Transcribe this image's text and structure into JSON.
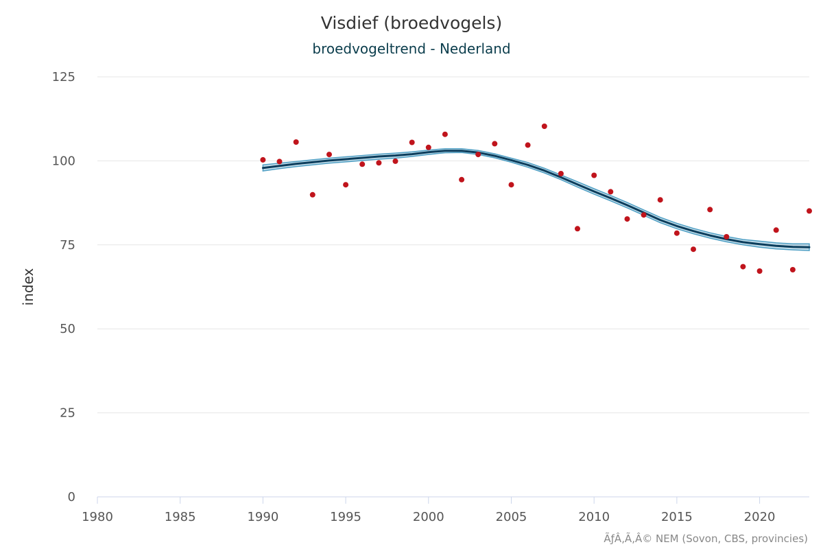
{
  "chart_data": {
    "type": "line",
    "title": "Visdief (broedvogels)",
    "subtitle": "broedvogeltrend - Nederland",
    "xlabel": "",
    "ylabel": "index",
    "xlim": [
      1980,
      2023
    ],
    "ylim": [
      0,
      125
    ],
    "x_ticks": [
      "1980",
      "1985",
      "1990",
      "1995",
      "2000",
      "2005",
      "2010",
      "2015",
      "2020"
    ],
    "y_ticks": [
      "0",
      "25",
      "50",
      "75",
      "100",
      "125"
    ],
    "grid": true,
    "colors": {
      "trend": "#0b3d5c",
      "band": "#4f9fc4",
      "points": "#c0141c",
      "grid": "#e6e6e6",
      "axis": "#ccd6eb"
    },
    "series": [
      {
        "type": "scatter",
        "x": [
          1990,
          1991,
          1992,
          1993,
          1994,
          1995,
          1996,
          1997,
          1998,
          1999,
          2000,
          2001,
          2002,
          2003,
          2004,
          2005,
          2006,
          2007,
          2008,
          2009,
          2010,
          2011,
          2012,
          2013,
          2014,
          2015,
          2016,
          2017,
          2018,
          2019,
          2020,
          2021,
          2022,
          2023
        ],
        "values": [
          100.3,
          99.8,
          105.6,
          89.9,
          101.9,
          92.9,
          99.0,
          99.4,
          99.9,
          105.5,
          104.0,
          107.9,
          94.4,
          101.9,
          105.1,
          92.9,
          104.7,
          110.3,
          96.2,
          79.8,
          95.7,
          90.8,
          82.7,
          83.9,
          88.4,
          78.5,
          73.7,
          85.5,
          77.4,
          68.5,
          67.2,
          79.4,
          67.6,
          85.1
        ]
      },
      {
        "type": "line",
        "x": [
          1990,
          1991,
          1992,
          1993,
          1994,
          1995,
          1996,
          1997,
          1998,
          1999,
          2000,
          2001,
          2002,
          2003,
          2004,
          2005,
          2006,
          2007,
          2008,
          2009,
          2010,
          2011,
          2012,
          2013,
          2014,
          2015,
          2016,
          2017,
          2018,
          2019,
          2020,
          2021,
          2022,
          2023
        ],
        "values": [
          97.9,
          98.5,
          99.1,
          99.6,
          100.1,
          100.5,
          100.9,
          101.3,
          101.6,
          102.0,
          102.6,
          103.0,
          103.0,
          102.5,
          101.5,
          100.2,
          98.8,
          97.1,
          95.1,
          93.0,
          90.9,
          88.9,
          86.8,
          84.6,
          82.4,
          80.6,
          79.1,
          77.8,
          76.7,
          75.8,
          75.2,
          74.7,
          74.4,
          74.3
        ],
        "lower": [
          97.0,
          97.7,
          98.3,
          98.8,
          99.3,
          99.7,
          100.1,
          100.5,
          100.8,
          101.3,
          101.9,
          102.4,
          102.5,
          101.9,
          100.9,
          99.6,
          98.1,
          96.4,
          94.4,
          92.2,
          90.1,
          88.1,
          86.0,
          83.8,
          81.6,
          79.8,
          78.3,
          77.0,
          75.9,
          75.0,
          74.3,
          73.8,
          73.5,
          73.3
        ],
        "upper": [
          98.8,
          99.3,
          99.8,
          100.3,
          100.8,
          101.2,
          101.6,
          102.0,
          102.3,
          102.7,
          103.2,
          103.6,
          103.6,
          103.1,
          102.1,
          100.8,
          99.5,
          97.8,
          95.8,
          93.8,
          91.7,
          89.7,
          87.6,
          85.4,
          83.2,
          81.4,
          79.9,
          78.6,
          77.5,
          76.6,
          76.1,
          75.6,
          75.3,
          75.3
        ]
      }
    ],
    "credit": "ÃƒÂ‚Ã‚Â© NEM (Sovon, CBS, provincies)"
  }
}
